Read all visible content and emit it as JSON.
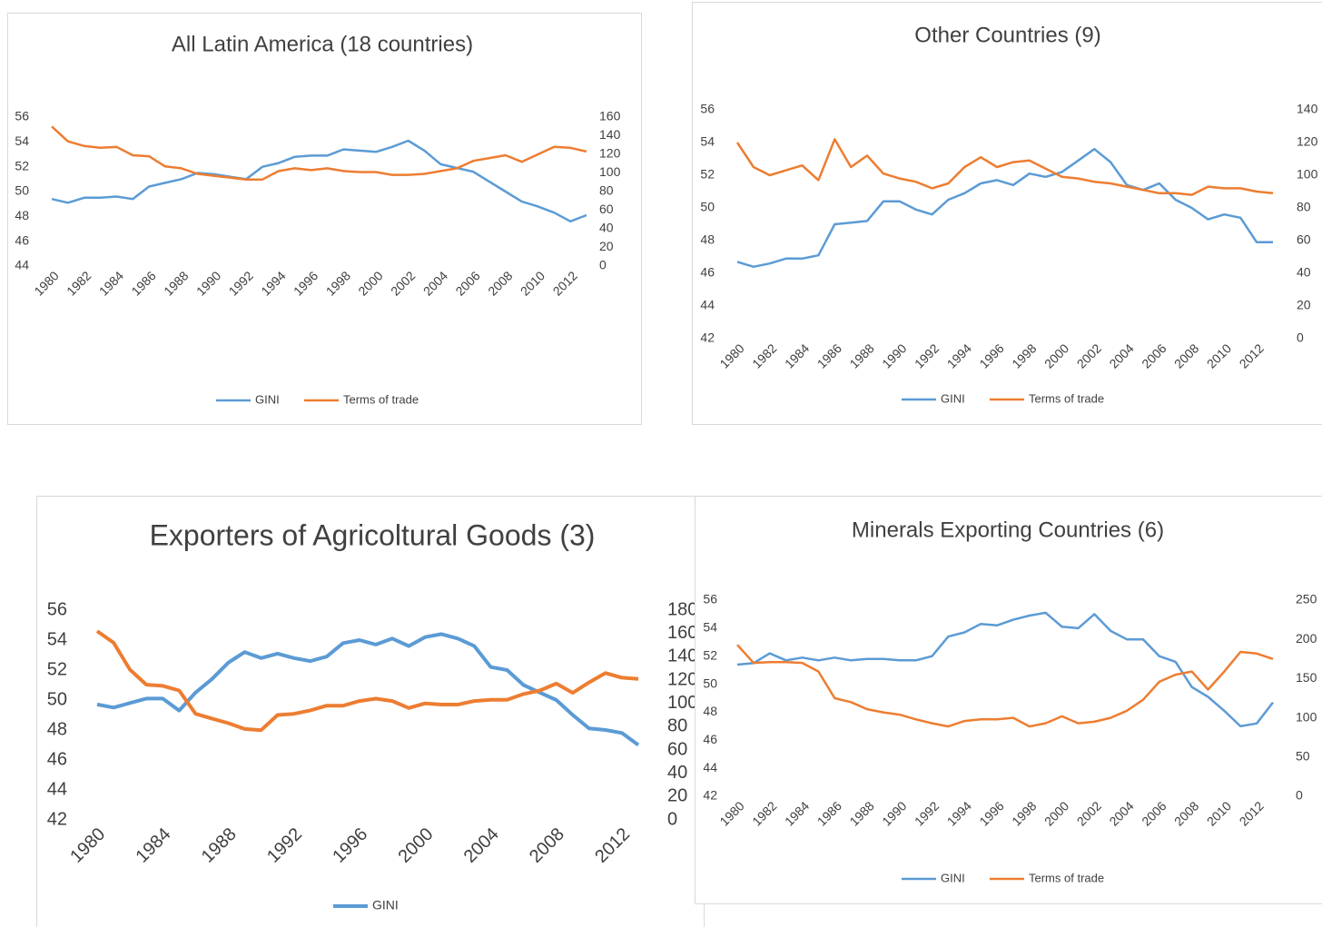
{
  "chart_data": [
    {
      "type": "line",
      "title": "All Latin America (18 countries)",
      "x": [
        1980,
        1981,
        1982,
        1983,
        1984,
        1985,
        1986,
        1987,
        1988,
        1989,
        1990,
        1991,
        1992,
        1993,
        1994,
        1995,
        1996,
        1997,
        1998,
        1999,
        2000,
        2001,
        2002,
        2003,
        2004,
        2005,
        2006,
        2007,
        2008,
        2009,
        2010,
        2011,
        2012,
        2013
      ],
      "xlim": [
        1980,
        2013
      ],
      "xticks": [
        1980,
        1982,
        1984,
        1986,
        1988,
        1990,
        1992,
        1994,
        1996,
        1998,
        2000,
        2002,
        2004,
        2006,
        2008,
        2010,
        2012
      ],
      "ylim": [
        44,
        56
      ],
      "yticks": [
        44,
        46,
        48,
        50,
        52,
        54,
        56
      ],
      "y2lim": [
        0,
        160
      ],
      "y2ticks": [
        0,
        20,
        40,
        60,
        80,
        100,
        120,
        140,
        160
      ],
      "series": [
        {
          "name": "GINI",
          "color": "#5b9bd5",
          "values": [
            49.4,
            49.1,
            49.5,
            49.5,
            49.6,
            49.4,
            50.4,
            50.7,
            51.0,
            51.5,
            51.4,
            51.2,
            51.0,
            52.0,
            52.3,
            52.8,
            52.9,
            52.9,
            53.4,
            53.3,
            53.2,
            53.6,
            54.1,
            53.3,
            52.2,
            51.9,
            51.6,
            50.8,
            50.0,
            49.2,
            48.8,
            48.3,
            47.6,
            48.1
          ]
        },
        {
          "name": "Terms of trade",
          "color": "#ed7d31",
          "axis": "y2",
          "values": [
            150,
            134,
            129,
            127,
            128,
            119,
            118,
            107,
            105,
            99,
            97,
            95,
            93,
            93,
            102,
            105,
            103,
            105,
            102,
            101,
            101,
            98,
            98,
            99,
            102,
            105,
            113,
            116,
            119,
            112,
            120,
            128,
            127,
            123
          ]
        }
      ]
    },
    {
      "type": "line",
      "title": "Other Countries (9)",
      "x": [
        1980,
        1981,
        1982,
        1983,
        1984,
        1985,
        1986,
        1987,
        1988,
        1989,
        1990,
        1991,
        1992,
        1993,
        1994,
        1995,
        1996,
        1997,
        1998,
        1999,
        2000,
        2001,
        2002,
        2003,
        2004,
        2005,
        2006,
        2007,
        2008,
        2009,
        2010,
        2011,
        2012,
        2013
      ],
      "xlim": [
        1980,
        2013
      ],
      "xticks": [
        1980,
        1982,
        1984,
        1986,
        1988,
        1990,
        1992,
        1994,
        1996,
        1998,
        2000,
        2002,
        2004,
        2006,
        2008,
        2010,
        2012
      ],
      "ylim": [
        42,
        56
      ],
      "yticks": [
        42,
        44,
        46,
        48,
        50,
        52,
        54,
        56
      ],
      "y2lim": [
        0,
        140
      ],
      "y2ticks": [
        0,
        20,
        40,
        60,
        80,
        100,
        120,
        140
      ],
      "series": [
        {
          "name": "GINI",
          "color": "#5b9bd5",
          "values": [
            46.7,
            46.4,
            46.6,
            46.9,
            46.9,
            47.1,
            49.0,
            49.1,
            49.2,
            50.4,
            50.4,
            49.9,
            49.6,
            50.5,
            50.9,
            51.5,
            51.7,
            51.4,
            52.1,
            51.9,
            52.2,
            52.9,
            53.6,
            52.8,
            51.4,
            51.1,
            51.5,
            50.5,
            50.0,
            49.3,
            49.6,
            49.4,
            47.9,
            47.9
          ]
        },
        {
          "name": "Terms of trade",
          "color": "#ed7d31",
          "axis": "y2",
          "values": [
            120,
            105,
            100,
            103,
            106,
            97,
            122,
            105,
            112,
            101,
            98,
            96,
            92,
            95,
            105,
            111,
            105,
            108,
            109,
            104,
            99,
            98,
            96,
            95,
            93,
            91,
            89,
            89,
            88,
            93,
            92,
            92,
            90,
            89
          ]
        }
      ]
    },
    {
      "type": "line",
      "title": "Exporters of Agricoltural Goods (3)",
      "x": [
        1980,
        1981,
        1982,
        1983,
        1984,
        1985,
        1986,
        1987,
        1988,
        1989,
        1990,
        1991,
        1992,
        1993,
        1994,
        1995,
        1996,
        1997,
        1998,
        1999,
        2000,
        2001,
        2002,
        2003,
        2004,
        2005,
        2006,
        2007,
        2008,
        2009,
        2010,
        2011,
        2012,
        2013
      ],
      "xlim": [
        1980,
        2013
      ],
      "xticks": [
        1980,
        1984,
        1988,
        1992,
        1996,
        2000,
        2004,
        2008,
        2012
      ],
      "ylim": [
        42,
        56
      ],
      "yticks": [
        42,
        44,
        46,
        48,
        50,
        52,
        54,
        56
      ],
      "y2lim": [
        0,
        180
      ],
      "y2ticks": [
        0,
        20,
        40,
        60,
        80,
        100,
        120,
        140,
        160,
        180
      ],
      "series": [
        {
          "name": "GINI",
          "color": "#5b9bd5",
          "values": [
            49.7,
            49.5,
            49.8,
            50.1,
            50.1,
            49.3,
            50.5,
            51.4,
            52.5,
            53.2,
            52.8,
            53.1,
            52.8,
            52.6,
            52.9,
            53.8,
            54.0,
            53.7,
            54.1,
            53.6,
            54.2,
            54.4,
            54.1,
            53.6,
            52.2,
            52.0,
            51.0,
            50.5,
            50.0,
            49.0,
            48.1,
            48.0,
            47.8,
            47.0
          ]
        },
        {
          "color": "#ed7d31",
          "axis": "y2",
          "values": [
            162,
            152,
            129,
            116,
            115,
            111,
            91,
            87,
            83,
            78,
            77,
            90,
            91,
            94,
            98,
            98,
            102,
            104,
            102,
            96,
            100,
            99,
            99,
            102,
            103,
            103,
            108,
            111,
            117,
            109,
            118,
            126,
            122,
            121
          ]
        }
      ]
    },
    {
      "type": "line",
      "title": "Minerals Exporting Countries (6)",
      "x": [
        1980,
        1981,
        1982,
        1983,
        1984,
        1985,
        1986,
        1987,
        1988,
        1989,
        1990,
        1991,
        1992,
        1993,
        1994,
        1995,
        1996,
        1997,
        1998,
        1999,
        2000,
        2001,
        2002,
        2003,
        2004,
        2005,
        2006,
        2007,
        2008,
        2009,
        2010,
        2011,
        2012,
        2013
      ],
      "xlim": [
        1980,
        2013
      ],
      "xticks": [
        1980,
        1982,
        1984,
        1986,
        1988,
        1990,
        1992,
        1994,
        1996,
        1998,
        2000,
        2002,
        2004,
        2006,
        2008,
        2010,
        2012
      ],
      "ylim": [
        42,
        56
      ],
      "yticks": [
        42,
        44,
        46,
        48,
        50,
        52,
        54,
        56
      ],
      "y2lim": [
        0,
        250
      ],
      "y2ticks": [
        0,
        50,
        100,
        150,
        200,
        250
      ],
      "series": [
        {
          "name": "GINI",
          "color": "#5b9bd5",
          "values": [
            51.4,
            51.5,
            52.2,
            51.7,
            51.9,
            51.7,
            51.9,
            51.7,
            51.8,
            51.8,
            51.7,
            51.7,
            52.0,
            53.4,
            53.7,
            54.3,
            54.2,
            54.6,
            54.9,
            55.1,
            54.1,
            54.0,
            55.0,
            53.8,
            53.2,
            53.2,
            52.0,
            51.6,
            49.8,
            49.1,
            48.1,
            47.0,
            47.2,
            48.7
          ]
        },
        {
          "name": "Terms of trade",
          "color": "#ed7d31",
          "axis": "y2",
          "values": [
            193,
            170,
            171,
            171,
            170,
            159,
            125,
            120,
            111,
            107,
            104,
            98,
            93,
            89,
            96,
            98,
            98,
            100,
            89,
            93,
            102,
            93,
            95,
            100,
            109,
            123,
            146,
            155,
            159,
            136,
            159,
            184,
            182,
            175
          ]
        }
      ]
    }
  ]
}
